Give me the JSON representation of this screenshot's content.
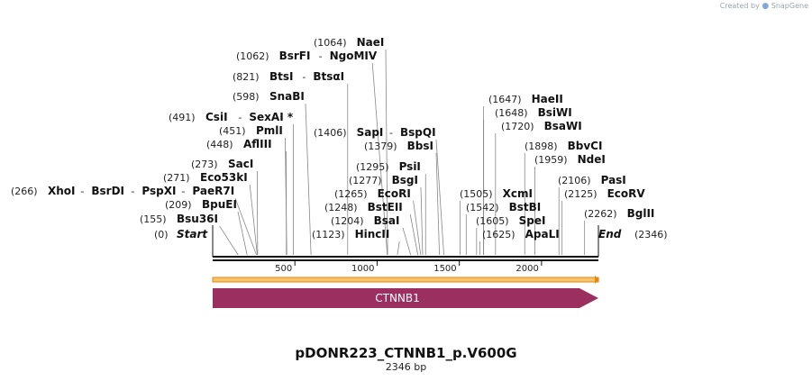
{
  "credit": {
    "prefix": "Created by",
    "brand": "SnapGene"
  },
  "map": {
    "title": "pDONR223_CTNNB1_p.V600G",
    "length_label": "2346 bp",
    "length": 2346,
    "ruler_ticks": [
      500,
      1000,
      1500,
      2000
    ],
    "start_label": "Start",
    "end_label": "End",
    "start_pos": 0,
    "end_pos": 2346,
    "feature": {
      "name": "CTNNB1",
      "start": 0,
      "end": 2346,
      "color": "#9b3060",
      "direction": "forward"
    },
    "orf_color": "#f0a830",
    "sites": [
      {
        "pos": 155,
        "pos_label": "(155)",
        "names": [
          "Bsu36I"
        ]
      },
      {
        "pos": 209,
        "pos_label": "(209)",
        "names": [
          "BpuEI"
        ]
      },
      {
        "pos": 266,
        "pos_label": "(266)",
        "names": [
          "XhoI",
          "BsrDI",
          "PspXI",
          "PaeR7I"
        ]
      },
      {
        "pos": 271,
        "pos_label": "(271)",
        "names": [
          "Eco53kI"
        ]
      },
      {
        "pos": 273,
        "pos_label": "(273)",
        "names": [
          "SacI"
        ]
      },
      {
        "pos": 448,
        "pos_label": "(448)",
        "names": [
          "AflIII"
        ]
      },
      {
        "pos": 451,
        "pos_label": "(451)",
        "names": [
          "PmlI"
        ]
      },
      {
        "pos": 491,
        "pos_label": "(491)",
        "names": [
          "CsiI",
          "SexAI *"
        ]
      },
      {
        "pos": 598,
        "pos_label": "(598)",
        "names": [
          "SnaBI"
        ]
      },
      {
        "pos": 821,
        "pos_label": "(821)",
        "names": [
          "BtsI",
          "BtsαI"
        ]
      },
      {
        "pos": 1062,
        "pos_label": "(1062)",
        "names": [
          "BsrFI",
          "NgoMIV"
        ]
      },
      {
        "pos": 1064,
        "pos_label": "(1064)",
        "names": [
          "NaeI"
        ]
      },
      {
        "pos": 1123,
        "pos_label": "(1123)",
        "names": [
          "HincII"
        ]
      },
      {
        "pos": 1204,
        "pos_label": "(1204)",
        "names": [
          "BsaI"
        ]
      },
      {
        "pos": 1248,
        "pos_label": "(1248)",
        "names": [
          "BstEII"
        ]
      },
      {
        "pos": 1265,
        "pos_label": "(1265)",
        "names": [
          "EcoRI"
        ]
      },
      {
        "pos": 1277,
        "pos_label": "(1277)",
        "names": [
          "BsgI"
        ]
      },
      {
        "pos": 1295,
        "pos_label": "(1295)",
        "names": [
          "PsiI"
        ]
      },
      {
        "pos": 1379,
        "pos_label": "(1379)",
        "names": [
          "BbsI"
        ]
      },
      {
        "pos": 1406,
        "pos_label": "(1406)",
        "names": [
          "SapI",
          "BspQI"
        ]
      },
      {
        "pos": 1505,
        "pos_label": "(1505)",
        "names": [
          "XcmI"
        ]
      },
      {
        "pos": 1542,
        "pos_label": "(1542)",
        "names": [
          "BstBI"
        ]
      },
      {
        "pos": 1605,
        "pos_label": "(1605)",
        "names": [
          "SpeI"
        ]
      },
      {
        "pos": 1625,
        "pos_label": "(1625)",
        "names": [
          "ApaLI"
        ]
      },
      {
        "pos": 1647,
        "pos_label": "(1647)",
        "names": [
          "HaeII"
        ]
      },
      {
        "pos": 1648,
        "pos_label": "(1648)",
        "names": [
          "BsiWI"
        ]
      },
      {
        "pos": 1720,
        "pos_label": "(1720)",
        "names": [
          "BsaWI"
        ]
      },
      {
        "pos": 1898,
        "pos_label": "(1898)",
        "names": [
          "BbvCI"
        ]
      },
      {
        "pos": 1959,
        "pos_label": "(1959)",
        "names": [
          "NdeI"
        ]
      },
      {
        "pos": 2106,
        "pos_label": "(2106)",
        "names": [
          "PasI"
        ]
      },
      {
        "pos": 2125,
        "pos_label": "(2125)",
        "names": [
          "EcoRV"
        ]
      },
      {
        "pos": 2262,
        "pos_label": "(2262)",
        "names": [
          "BglII"
        ]
      }
    ]
  }
}
